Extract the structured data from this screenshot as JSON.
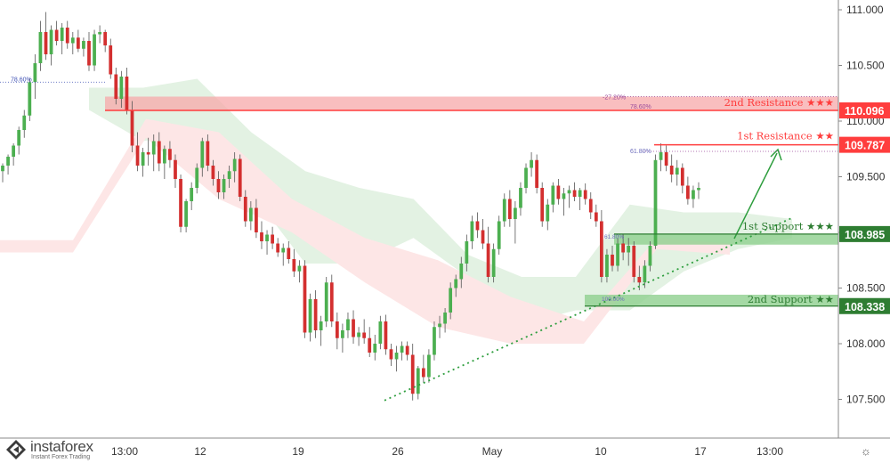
{
  "chart_data": {
    "type": "candlestick",
    "title": "",
    "y_axis": {
      "range": [
        107.32,
        111.18
      ],
      "ticks": [
        "111.000",
        "110.500",
        "110.000",
        "109.500",
        "109.000",
        "108.500",
        "108.000",
        "107.500"
      ],
      "tick_values": [
        111.0,
        110.5,
        110.0,
        109.5,
        109.0,
        108.5,
        108.0,
        107.5
      ]
    },
    "x_axis": {
      "ticks": [
        "13:00",
        "12",
        "19",
        "26",
        "May",
        "10",
        "17",
        "13:00"
      ]
    },
    "levels": [
      {
        "name": "2nd Resistance",
        "stars": "★★★",
        "value": 110.096,
        "label": "110.096",
        "kind": "resistance",
        "fib": "78.60%",
        "ext": "-27.20%",
        "zone": [
          110.096,
          110.22
        ]
      },
      {
        "name": "1st Resistance",
        "stars": "★★",
        "value": 109.787,
        "label": "109.787",
        "kind": "resistance",
        "fib": "61.80%"
      },
      {
        "name": "1st Support",
        "stars": "★★★",
        "value": 108.985,
        "label": "108.985",
        "kind": "support",
        "fib": "61.80%",
        "zone": [
          108.89,
          108.985
        ]
      },
      {
        "name": "2nd Support",
        "stars": "★★",
        "value": 108.338,
        "label": "108.338",
        "kind": "support",
        "fib": "100.00%",
        "zone": [
          108.338,
          108.44
        ]
      }
    ],
    "left_fib_label": "78.60%",
    "trendline": {
      "from": 107.49,
      "to": 109.13
    },
    "ichimoku": {
      "bull_cloud": [
        [
          110.3,
          110.1
        ],
        [
          110.3,
          109.82
        ],
        [
          110.38,
          109.9
        ],
        [
          109.9,
          109.36
        ],
        [
          109.55,
          108.72
        ],
        [
          109.4,
          108.72
        ],
        [
          109.3,
          108.95
        ],
        [
          108.8,
          108.6
        ],
        [
          108.6,
          108.18
        ],
        [
          108.6,
          108.3
        ],
        [
          109.25,
          108.3
        ],
        [
          109.18,
          108.65
        ],
        [
          109.18,
          108.85
        ],
        [
          109.12,
          108.95
        ]
      ],
      "bear_cloud": [
        [
          108.93,
          108.82
        ],
        [
          108.93,
          108.82
        ],
        [
          110.02,
          109.85
        ],
        [
          109.9,
          109.3
        ],
        [
          109.3,
          109.0
        ],
        [
          108.95,
          108.55
        ],
        [
          108.75,
          108.15
        ],
        [
          108.42,
          108.0
        ],
        [
          108.2,
          108.0
        ],
        [
          108.95,
          108.85
        ],
        [
          108.9,
          108.8
        ]
      ]
    },
    "ohlc": [
      [
        109.55,
        109.62,
        109.45,
        109.6
      ],
      [
        109.6,
        109.7,
        109.52,
        109.68
      ],
      [
        109.68,
        109.8,
        109.6,
        109.78
      ],
      [
        109.78,
        109.95,
        109.7,
        109.92
      ],
      [
        109.92,
        110.1,
        109.85,
        110.05
      ],
      [
        110.05,
        110.38,
        110.0,
        110.35
      ],
      [
        110.35,
        110.6,
        110.2,
        110.52
      ],
      [
        110.52,
        110.9,
        110.45,
        110.8
      ],
      [
        110.8,
        110.98,
        110.55,
        110.6
      ],
      [
        110.6,
        110.86,
        110.5,
        110.82
      ],
      [
        110.82,
        110.9,
        110.68,
        110.72
      ],
      [
        110.72,
        110.88,
        110.6,
        110.84
      ],
      [
        110.84,
        110.9,
        110.65,
        110.7
      ],
      [
        110.7,
        110.8,
        110.6,
        110.75
      ],
      [
        110.75,
        110.82,
        110.62,
        110.65
      ],
      [
        110.65,
        110.75,
        110.58,
        110.72
      ],
      [
        110.72,
        110.8,
        110.45,
        110.5
      ],
      [
        110.5,
        110.82,
        110.45,
        110.78
      ],
      [
        110.78,
        110.86,
        110.7,
        110.8
      ],
      [
        110.8,
        110.82,
        110.62,
        110.68
      ],
      [
        110.68,
        110.74,
        110.38,
        110.42
      ],
      [
        110.42,
        110.48,
        110.15,
        110.2
      ],
      [
        110.2,
        110.45,
        110.12,
        110.4
      ],
      [
        110.4,
        110.48,
        110.06,
        110.1
      ],
      [
        110.1,
        110.18,
        109.72,
        109.78
      ],
      [
        109.78,
        109.9,
        109.55,
        109.6
      ],
      [
        109.6,
        109.76,
        109.5,
        109.72
      ],
      [
        109.72,
        109.85,
        109.6,
        109.7
      ],
      [
        109.7,
        109.88,
        109.55,
        109.82
      ],
      [
        109.82,
        109.9,
        109.55,
        109.62
      ],
      [
        109.62,
        109.78,
        109.48,
        109.75
      ],
      [
        109.75,
        109.82,
        109.58,
        109.65
      ],
      [
        109.65,
        109.7,
        109.4,
        109.48
      ],
      [
        109.48,
        109.52,
        109.0,
        109.05
      ],
      [
        109.05,
        109.3,
        109.0,
        109.28
      ],
      [
        109.28,
        109.45,
        109.2,
        109.4
      ],
      [
        109.4,
        109.62,
        109.35,
        109.58
      ],
      [
        109.58,
        109.85,
        109.5,
        109.82
      ],
      [
        109.82,
        109.88,
        109.55,
        109.6
      ],
      [
        109.6,
        109.65,
        109.42,
        109.48
      ],
      [
        109.48,
        109.55,
        109.3,
        109.36
      ],
      [
        109.36,
        109.52,
        109.3,
        109.48
      ],
      [
        109.48,
        109.6,
        109.4,
        109.55
      ],
      [
        109.55,
        109.72,
        109.45,
        109.66
      ],
      [
        109.66,
        109.7,
        109.28,
        109.32
      ],
      [
        109.32,
        109.38,
        109.05,
        109.1
      ],
      [
        109.1,
        109.28,
        109.02,
        109.22
      ],
      [
        109.22,
        109.3,
        108.95,
        109.0
      ],
      [
        109.0,
        109.1,
        108.85,
        108.92
      ],
      [
        108.92,
        109.02,
        108.8,
        108.98
      ],
      [
        108.98,
        109.05,
        108.85,
        108.9
      ],
      [
        108.9,
        108.95,
        108.78,
        108.82
      ],
      [
        108.82,
        108.9,
        108.7,
        108.86
      ],
      [
        108.86,
        108.92,
        108.72,
        108.76
      ],
      [
        108.76,
        108.85,
        108.6,
        108.65
      ],
      [
        108.65,
        108.75,
        108.55,
        108.7
      ],
      [
        108.7,
        108.75,
        108.05,
        108.1
      ],
      [
        108.1,
        108.45,
        108.02,
        108.4
      ],
      [
        108.4,
        108.48,
        108.05,
        108.12
      ],
      [
        108.12,
        108.25,
        107.98,
        108.2
      ],
      [
        108.2,
        108.6,
        108.15,
        108.55
      ],
      [
        108.55,
        108.62,
        108.15,
        108.2
      ],
      [
        108.2,
        108.28,
        107.95,
        108.05
      ],
      [
        108.05,
        108.18,
        107.92,
        108.12
      ],
      [
        108.12,
        108.28,
        108.05,
        108.22
      ],
      [
        108.22,
        108.3,
        108.0,
        108.06
      ],
      [
        108.06,
        108.15,
        107.98,
        108.1
      ],
      [
        108.1,
        108.22,
        108.0,
        108.05
      ],
      [
        108.05,
        108.15,
        107.88,
        107.92
      ],
      [
        107.92,
        108.08,
        107.85,
        108.0
      ],
      [
        108.0,
        108.25,
        107.95,
        108.2
      ],
      [
        108.2,
        108.26,
        107.9,
        107.95
      ],
      [
        107.95,
        108.0,
        107.8,
        107.86
      ],
      [
        107.86,
        107.98,
        107.75,
        107.92
      ],
      [
        107.92,
        108.02,
        107.85,
        107.98
      ],
      [
        107.98,
        108.02,
        107.85,
        107.9
      ],
      [
        107.9,
        108.0,
        107.49,
        107.55
      ],
      [
        107.55,
        107.8,
        107.5,
        107.78
      ],
      [
        107.78,
        107.9,
        107.65,
        107.7
      ],
      [
        107.7,
        107.95,
        107.65,
        107.9
      ],
      [
        107.9,
        108.2,
        107.85,
        108.15
      ],
      [
        108.15,
        108.25,
        108.05,
        108.18
      ],
      [
        108.18,
        108.32,
        108.1,
        108.28
      ],
      [
        108.28,
        108.55,
        108.22,
        108.5
      ],
      [
        108.5,
        108.62,
        108.42,
        108.58
      ],
      [
        108.58,
        108.78,
        108.5,
        108.72
      ],
      [
        108.72,
        108.98,
        108.65,
        108.92
      ],
      [
        108.92,
        109.15,
        108.85,
        109.1
      ],
      [
        109.1,
        109.18,
        108.95,
        109.02
      ],
      [
        109.02,
        109.12,
        108.85,
        108.9
      ],
      [
        108.9,
        109.05,
        108.55,
        108.6
      ],
      [
        108.6,
        108.9,
        108.55,
        108.85
      ],
      [
        108.85,
        109.15,
        108.8,
        109.1
      ],
      [
        109.1,
        109.35,
        109.05,
        109.3
      ],
      [
        109.3,
        109.38,
        109.05,
        109.12
      ],
      [
        109.12,
        109.28,
        108.9,
        109.22
      ],
      [
        109.22,
        109.45,
        109.15,
        109.4
      ],
      [
        109.4,
        109.62,
        109.35,
        109.58
      ],
      [
        109.58,
        109.72,
        109.5,
        109.65
      ],
      [
        109.65,
        109.7,
        109.35,
        109.4
      ],
      [
        109.4,
        109.45,
        109.05,
        109.1
      ],
      [
        109.1,
        109.3,
        109.02,
        109.25
      ],
      [
        109.25,
        109.45,
        109.18,
        109.42
      ],
      [
        109.42,
        109.48,
        109.25,
        109.3
      ],
      [
        109.3,
        109.4,
        109.15,
        109.35
      ],
      [
        109.35,
        109.42,
        109.22,
        109.38
      ],
      [
        109.38,
        109.45,
        109.28,
        109.32
      ],
      [
        109.32,
        109.4,
        109.2,
        109.38
      ],
      [
        109.38,
        109.44,
        109.25,
        109.3
      ],
      [
        109.3,
        109.36,
        109.12,
        109.18
      ],
      [
        109.18,
        109.25,
        109.05,
        109.1
      ],
      [
        109.1,
        109.2,
        108.55,
        108.6
      ],
      [
        108.6,
        108.85,
        108.55,
        108.8
      ],
      [
        108.8,
        108.88,
        108.65,
        108.7
      ],
      [
        108.7,
        108.95,
        108.65,
        108.9
      ],
      [
        108.9,
        108.98,
        108.75,
        108.82
      ],
      [
        108.82,
        108.95,
        108.7,
        108.88
      ],
      [
        108.88,
        108.92,
        108.55,
        108.6
      ],
      [
        108.6,
        108.7,
        108.48,
        108.55
      ],
      [
        108.55,
        108.75,
        108.5,
        108.7
      ],
      [
        108.7,
        108.92,
        108.65,
        108.88
      ],
      [
        108.88,
        109.7,
        108.85,
        109.65
      ],
      [
        109.65,
        109.8,
        109.55,
        109.72
      ],
      [
        109.72,
        109.78,
        109.55,
        109.6
      ],
      [
        109.6,
        109.7,
        109.45,
        109.52
      ],
      [
        109.52,
        109.65,
        109.42,
        109.58
      ],
      [
        109.58,
        109.62,
        109.35,
        109.42
      ],
      [
        109.42,
        109.5,
        109.25,
        109.3
      ],
      [
        109.3,
        109.42,
        109.22,
        109.38
      ],
      [
        109.38,
        109.45,
        109.3,
        109.4
      ]
    ],
    "grid": false,
    "legend": "none"
  },
  "branding": {
    "name": "instaforex",
    "tagline": "Instant Forex Trading"
  },
  "icons": {
    "settings": "gear-icon",
    "logo": "logo-mark-icon"
  },
  "colors": {
    "bull": "#4caf50",
    "bear": "#d32f2f",
    "resistance": "#ff3d3d",
    "resistance_zone": "#f7a8aa",
    "support": "#2e7d32",
    "support_zone": "#8fcf8f",
    "cloud_bull": "#e3f2e3",
    "cloud_bear": "#fde6e6",
    "trendline": "#2e9e3e",
    "axis_text": "#333333"
  }
}
